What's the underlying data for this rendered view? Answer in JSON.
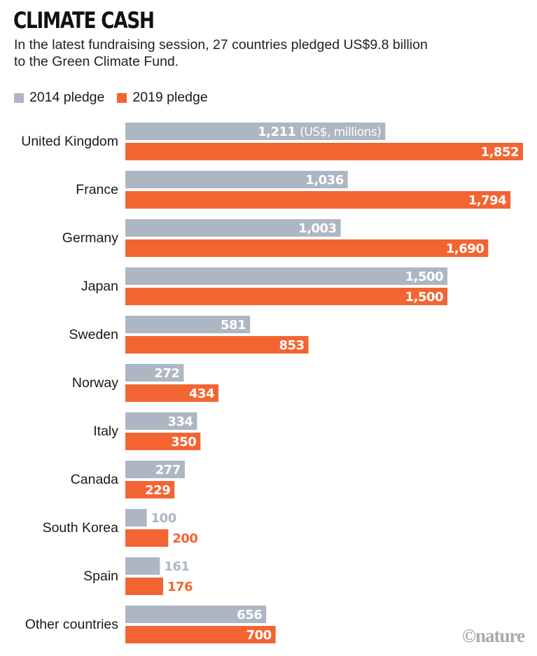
{
  "chart_data": {
    "type": "bar",
    "orientation": "horizontal",
    "title": "CLIMATE CASH",
    "subtitle": "In the latest fundraising session, 27 countries pledged US$9.8 billion to the Green Climate Fund.",
    "unit_note": "(US$, millions)",
    "categories": [
      "United Kingdom",
      "France",
      "Germany",
      "Japan",
      "Sweden",
      "Norway",
      "Italy",
      "Canada",
      "South Korea",
      "Spain",
      "Other countries"
    ],
    "series": [
      {
        "name": "2014 pledge",
        "color": "#adb7c3",
        "values": [
          1211,
          1036,
          1003,
          1500,
          581,
          272,
          334,
          277,
          100,
          161,
          656
        ],
        "labels": [
          "1,211",
          "1,036",
          "1,003",
          "1,500",
          "581",
          "272",
          "334",
          "277",
          "100",
          "161",
          "656"
        ]
      },
      {
        "name": "2019 pledge",
        "color": "#f26532",
        "values": [
          1852,
          1794,
          1690,
          1500,
          853,
          434,
          350,
          229,
          200,
          176,
          700
        ],
        "labels": [
          "1,852",
          "1,794",
          "1,690",
          "1,500",
          "853",
          "434",
          "350",
          "229",
          "200",
          "176",
          "700"
        ]
      }
    ],
    "xlim": [
      0,
      1852
    ],
    "grid": false,
    "legend": "top-left"
  },
  "credit": "©nature"
}
